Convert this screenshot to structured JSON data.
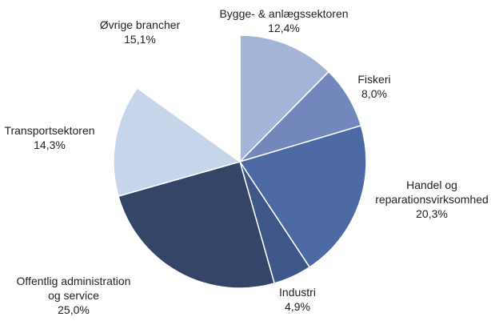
{
  "chart_data": {
    "type": "pie",
    "categories": [
      "Bygge- & anlægssektoren",
      "Fiskeri",
      "Handel og\nreparationsvirksomhed",
      "Industri",
      "Offentlig administration\nog service",
      "Transportsektoren",
      "Øvrige brancher"
    ],
    "values": [
      12.4,
      8.0,
      20.3,
      4.9,
      25.0,
      14.3,
      15.1
    ],
    "value_labels": [
      "12,4%",
      "8,0%",
      "20,3%",
      "4,9%",
      "25,0%",
      "14,3%",
      "15,1%"
    ],
    "colors": [
      "#a3b4d6",
      "#7288bd",
      "#4d69a3",
      "#3e5688",
      "#354568",
      "#c7d5ea",
      "#ffffff"
    ]
  }
}
